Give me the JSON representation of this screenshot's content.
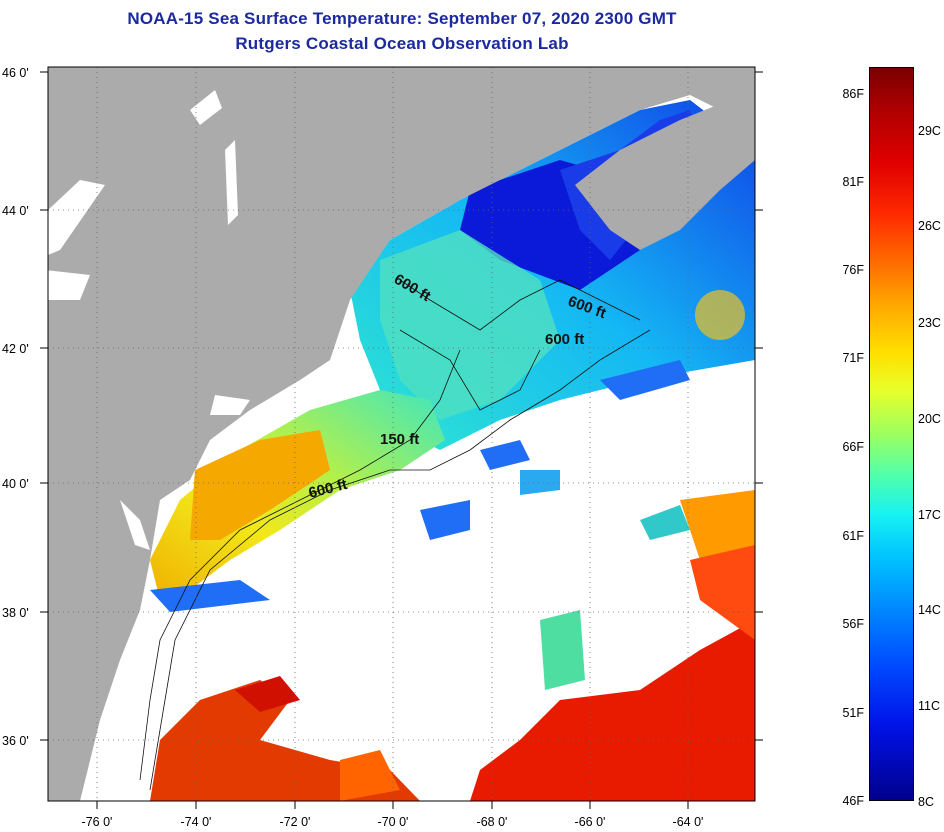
{
  "title": {
    "line1": "NOAA-15 Sea Surface Temperature:  September 07, 2020 2300 GMT",
    "line2": "Rutgers Coastal Ocean Observation Lab"
  },
  "axes": {
    "lat_labels": [
      "46 0'",
      "44 0'",
      "42 0'",
      "40 0'",
      "38 0'",
      "36 0'"
    ],
    "lon_labels": [
      "-76 0'",
      "-74 0'",
      "-72 0'",
      "-70 0'",
      "-68 0'",
      "-66 0'",
      "-64 0'"
    ]
  },
  "contours": [
    "600 ft",
    "600 ft",
    "600 ft",
    "150 ft",
    "600 ft"
  ],
  "colorbar": {
    "fahrenheit": [
      "86F",
      "81F",
      "76F",
      "71F",
      "66F",
      "61F",
      "56F",
      "51F",
      "46F"
    ],
    "celsius": [
      "29C",
      "26C",
      "23C",
      "20C",
      "17C",
      "14C",
      "11C",
      "8C"
    ]
  },
  "colors": {
    "land": "#ababab",
    "cloud": "#ffffff",
    "title": "#1c2a9e",
    "warm": "#e81a00",
    "cold": "#0a1ad8"
  }
}
